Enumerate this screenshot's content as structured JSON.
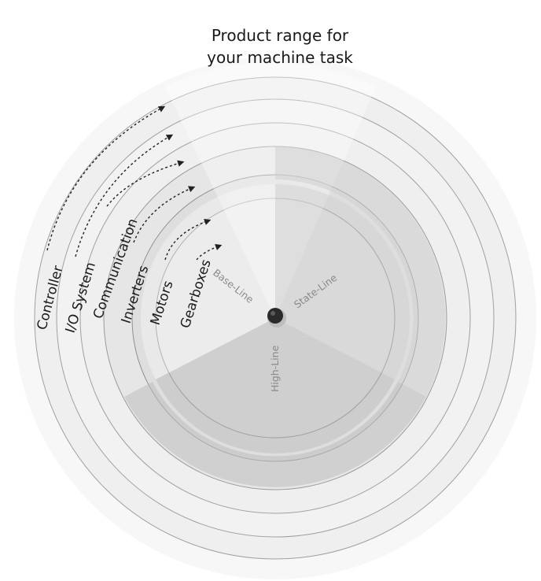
{
  "title": {
    "line1": "Product range for",
    "line2": "your machine task"
  },
  "layers": [
    {
      "id": "controller",
      "label": "Controller"
    },
    {
      "id": "io-system",
      "label": "I/O System"
    },
    {
      "id": "communication",
      "label": "Communication"
    },
    {
      "id": "inverters",
      "label": "Inverters"
    },
    {
      "id": "motors",
      "label": "Motors"
    },
    {
      "id": "gearboxes",
      "label": "Gearboxes"
    }
  ],
  "sectors": {
    "base": "Base-Line",
    "state": "State-Line",
    "high": "High-Line"
  },
  "colors": {
    "background": "#ffffff",
    "ring_light": "#ededed",
    "ring_lighter": "#f4f4f4",
    "sector_base": "#e4e4e4",
    "sector_state": "#d6d6d6",
    "sector_high": "#c6c6c6",
    "ring_border": "#9a9a9a",
    "arrow": "#222222",
    "sector_text": "#8a8a8a"
  }
}
